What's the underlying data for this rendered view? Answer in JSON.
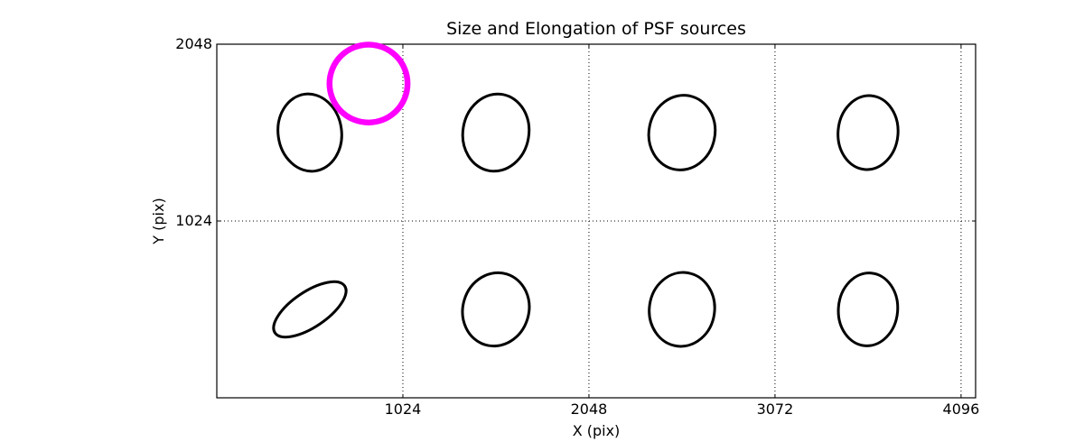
{
  "chart_data": {
    "type": "scatter",
    "marker": "ellipse",
    "title": "Size and Elongation of PSF sources",
    "xlabel": "X (pix)",
    "ylabel": "Y (pix)",
    "xlim": [
      0,
      4176
    ],
    "ylim": [
      0,
      2048
    ],
    "xticks": [
      1024,
      2048,
      3072,
      4096
    ],
    "yticks": [
      1024,
      2048
    ],
    "grid": {
      "style": "dotted",
      "color": "#000000"
    },
    "frame_color": "#000000",
    "ellipse_color": "#000000",
    "ellipse_linewidth": 3,
    "ellipses": [
      {
        "x": 512,
        "y": 1536,
        "semi_major": 219,
        "semi_minor": 179,
        "angle_deg": 98
      },
      {
        "x": 1536,
        "y": 1536,
        "semi_major": 219,
        "semi_minor": 186,
        "angle_deg": 80
      },
      {
        "x": 2560,
        "y": 1536,
        "semi_major": 212,
        "semi_minor": 186,
        "angle_deg": 78
      },
      {
        "x": 3584,
        "y": 1536,
        "semi_major": 209,
        "semi_minor": 169,
        "angle_deg": 85
      },
      {
        "x": 512,
        "y": 512,
        "semi_major": 237,
        "semi_minor": 100,
        "angle_deg": 34
      },
      {
        "x": 1536,
        "y": 512,
        "semi_major": 209,
        "semi_minor": 186,
        "angle_deg": 73
      },
      {
        "x": 2560,
        "y": 512,
        "semi_major": 209,
        "semi_minor": 184,
        "angle_deg": 82
      },
      {
        "x": 3584,
        "y": 512,
        "semi_major": 206,
        "semi_minor": 167,
        "angle_deg": 85
      }
    ],
    "highlight_circle": {
      "x": 835,
      "y": 1820,
      "radius": 220,
      "color": "#ff00ff",
      "linewidth": 6.5
    }
  }
}
